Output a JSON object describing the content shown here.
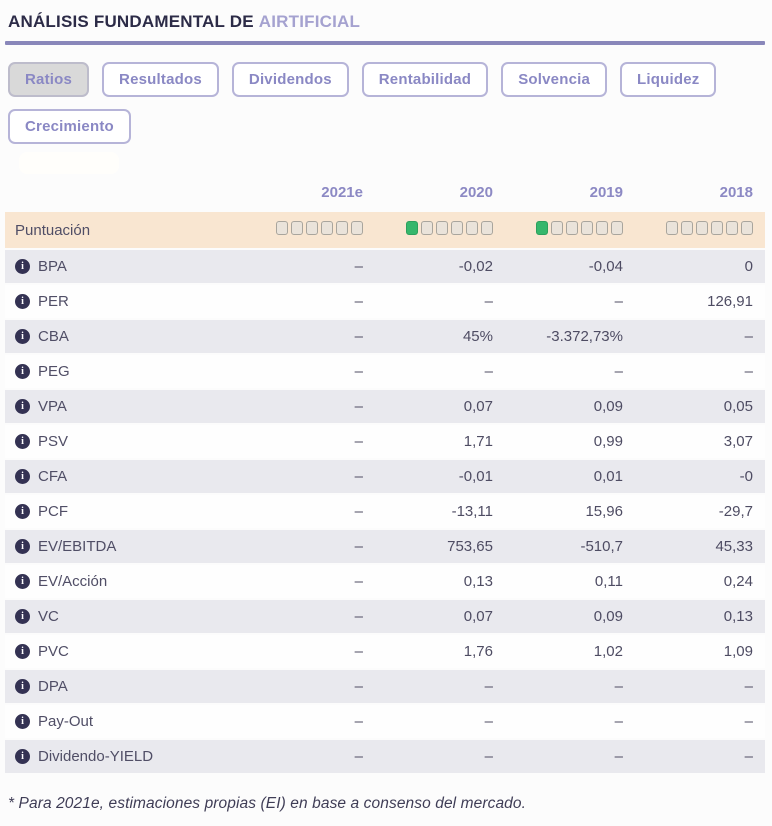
{
  "header": {
    "title_prefix": "ANÁLISIS FUNDAMENTAL DE",
    "title_company": "AIRTIFICIAL"
  },
  "tabs": [
    {
      "label": "Ratios",
      "active": true
    },
    {
      "label": "Resultados",
      "active": false
    },
    {
      "label": "Dividendos",
      "active": false
    },
    {
      "label": "Rentabilidad",
      "active": false
    },
    {
      "label": "Solvencia",
      "active": false
    },
    {
      "label": "Liquidez",
      "active": false
    },
    {
      "label": "Crecimiento",
      "active": false
    }
  ],
  "table": {
    "columns": [
      "2021e",
      "2020",
      "2019",
      "2018"
    ],
    "score_row": {
      "label": "Puntuación",
      "total_squares": 6,
      "scores": [
        0,
        1,
        1,
        0
      ]
    },
    "rows": [
      {
        "label": "BPA",
        "values": [
          "–",
          "-0,02",
          "-0,04",
          "0"
        ]
      },
      {
        "label": "PER",
        "values": [
          "–",
          "–",
          "–",
          "126,91"
        ]
      },
      {
        "label": "CBA",
        "values": [
          "–",
          "45%",
          "-3.372,73%",
          "–"
        ]
      },
      {
        "label": "PEG",
        "values": [
          "–",
          "–",
          "–",
          "–"
        ]
      },
      {
        "label": "VPA",
        "values": [
          "–",
          "0,07",
          "0,09",
          "0,05"
        ]
      },
      {
        "label": "PSV",
        "values": [
          "–",
          "1,71",
          "0,99",
          "3,07"
        ]
      },
      {
        "label": "CFA",
        "values": [
          "–",
          "-0,01",
          "0,01",
          "-0"
        ]
      },
      {
        "label": "PCF",
        "values": [
          "–",
          "-13,11",
          "15,96",
          "-29,7"
        ]
      },
      {
        "label": "EV/EBITDA",
        "values": [
          "–",
          "753,65",
          "-510,7",
          "45,33"
        ]
      },
      {
        "label": "EV/Acción",
        "values": [
          "–",
          "0,13",
          "0,11",
          "0,24"
        ]
      },
      {
        "label": "VC",
        "values": [
          "–",
          "0,07",
          "0,09",
          "0,13"
        ]
      },
      {
        "label": "PVC",
        "values": [
          "–",
          "1,76",
          "1,02",
          "1,09"
        ]
      },
      {
        "label": "DPA",
        "values": [
          "–",
          "–",
          "–",
          "–"
        ]
      },
      {
        "label": "Pay-Out",
        "values": [
          "–",
          "–",
          "–",
          "–"
        ]
      },
      {
        "label": "Dividendo-YIELD",
        "values": [
          "–",
          "–",
          "–",
          "–"
        ]
      }
    ]
  },
  "footnote": "* Para 2021e, estimaciones propias (EI) en base a consenso del mercado.",
  "colors": {
    "accent_purple": "#8a88c4",
    "title_dark": "#2c2b47",
    "title_company": "#a5a2d0",
    "divider": "#8987ba",
    "score_row_bg": "#f9e6d1",
    "row_alt_bg": "#e9e9ee",
    "square_empty": "#eae3da",
    "square_filled_green": "#36b76c",
    "active_tab_bg": "#d9d9d9"
  }
}
